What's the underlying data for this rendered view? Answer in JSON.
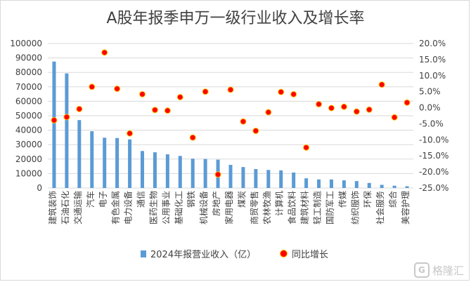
{
  "chart_data": {
    "type": "bar",
    "title": "A股年报季申万一级行业收入及增长率",
    "categories": [
      "建筑装饰",
      "石油石化",
      "交通运输",
      "汽车",
      "电子",
      "有色金属",
      "电力设备",
      "通信",
      "医药生物",
      "公用事业",
      "基础化工",
      "钢铁",
      "机械设备",
      "房地产",
      "家用电器",
      "煤炭",
      "商贸零售",
      "农林牧渔",
      "计算机",
      "食品饮料",
      "建筑材料",
      "轻工制造",
      "国防军工",
      "传媒",
      "纺织服饰",
      "环保",
      "社会服务",
      "综合",
      "美容护理"
    ],
    "series": [
      {
        "name": "2024年报营业收入（亿）",
        "type": "bar",
        "axis": "left",
        "color": "#5b9bd5",
        "values": [
          87500,
          79300,
          47000,
          39300,
          34800,
          34600,
          33600,
          25600,
          24700,
          23300,
          22200,
          20300,
          20100,
          19600,
          16000,
          14500,
          13100,
          12500,
          12200,
          10700,
          6700,
          5900,
          5900,
          5300,
          4800,
          3500,
          2200,
          1600,
          1200
        ]
      },
      {
        "name": "同比增长",
        "type": "scatter",
        "axis": "right",
        "color": "#ff0000",
        "edge": "#ffc000",
        "values": [
          -3.9,
          -2.9,
          -0.4,
          6.5,
          17.2,
          5.9,
          -8.0,
          4.2,
          -0.7,
          -0.9,
          3.3,
          -9.3,
          5.0,
          -20.8,
          5.6,
          -4.3,
          -7.2,
          -1.4,
          4.9,
          4.2,
          -12.4,
          1.1,
          -0.1,
          0.3,
          -1.2,
          -0.6,
          7.2,
          -3.0,
          1.6
        ]
      }
    ],
    "y_left": {
      "min": 0,
      "max": 100000,
      "step": 10000
    },
    "y_right": {
      "min": -25,
      "max": 20,
      "step": 5,
      "format": "percent"
    },
    "grid": "horizontal",
    "legend": "bottom"
  },
  "watermark": {
    "icon": "G",
    "text": "格隆汇"
  }
}
